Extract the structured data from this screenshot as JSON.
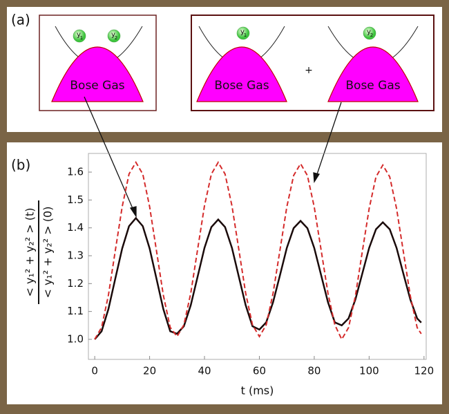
{
  "panel_a": {
    "label": "(a)",
    "gas_labels": [
      "Bose Gas",
      "Bose Gas",
      "Bose Gas"
    ],
    "particles": [
      {
        "base": "y",
        "sub": "1"
      },
      {
        "base": "y",
        "sub": "2"
      },
      {
        "base": "y",
        "sub": "1"
      },
      {
        "base": "y",
        "sub": "2"
      }
    ],
    "plus": "+"
  },
  "chart_data": {
    "type": "line",
    "panel_label": "(b)",
    "x_label": "t (ms)",
    "y_label_numerator": "< y₁² + y₂² > (t)",
    "y_label_denominator": "< y₁² + y₂² > (0)",
    "x": [
      0,
      2.5,
      5,
      7.5,
      10,
      12.5,
      15,
      17.5,
      20,
      22.5,
      25,
      27.5,
      30,
      32.5,
      35,
      37.5,
      40,
      42.5,
      45,
      47.5,
      50,
      52.5,
      55,
      57.5,
      60,
      62.5,
      65,
      67.5,
      70,
      72.5,
      75,
      77.5,
      80,
      82.5,
      85,
      87.5,
      90,
      92.5,
      95,
      97.5,
      100,
      102.5,
      105,
      107.5,
      110,
      112.5,
      115,
      117.5,
      119
    ],
    "series": [
      {
        "color": "#1a0a0a",
        "dash": false,
        "values": [
          1.0,
          1.029,
          1.109,
          1.218,
          1.326,
          1.406,
          1.435,
          1.406,
          1.326,
          1.218,
          1.109,
          1.029,
          1.02,
          1.047,
          1.123,
          1.225,
          1.328,
          1.403,
          1.43,
          1.403,
          1.328,
          1.225,
          1.123,
          1.047,
          1.035,
          1.061,
          1.133,
          1.23,
          1.328,
          1.399,
          1.425,
          1.399,
          1.328,
          1.23,
          1.133,
          1.061,
          1.05,
          1.075,
          1.143,
          1.235,
          1.328,
          1.395,
          1.42,
          1.395,
          1.328,
          1.235,
          1.143,
          1.075,
          1.06
        ]
      },
      {
        "color": "#d42a2a",
        "dash": true,
        "values": [
          1.0,
          1.043,
          1.159,
          1.318,
          1.476,
          1.593,
          1.635,
          1.593,
          1.476,
          1.318,
          1.159,
          1.043,
          1.01,
          1.052,
          1.166,
          1.323,
          1.479,
          1.593,
          1.635,
          1.593,
          1.479,
          1.323,
          1.166,
          1.052,
          1.01,
          1.052,
          1.165,
          1.32,
          1.475,
          1.588,
          1.63,
          1.588,
          1.475,
          1.32,
          1.165,
          1.052,
          1.0,
          1.042,
          1.156,
          1.313,
          1.469,
          1.583,
          1.625,
          1.583,
          1.469,
          1.313,
          1.156,
          1.042,
          1.02
        ]
      }
    ],
    "xlim": [
      -2.3,
      120.8
    ],
    "xticks": [
      0,
      20,
      40,
      60,
      80,
      100,
      120
    ],
    "ylim": [
      0.928,
      1.667
    ],
    "yticks": [
      {
        "value": 1,
        "label": "1.0"
      },
      1.1,
      1.2,
      1.3,
      1.4,
      1.5,
      1.6
    ]
  }
}
